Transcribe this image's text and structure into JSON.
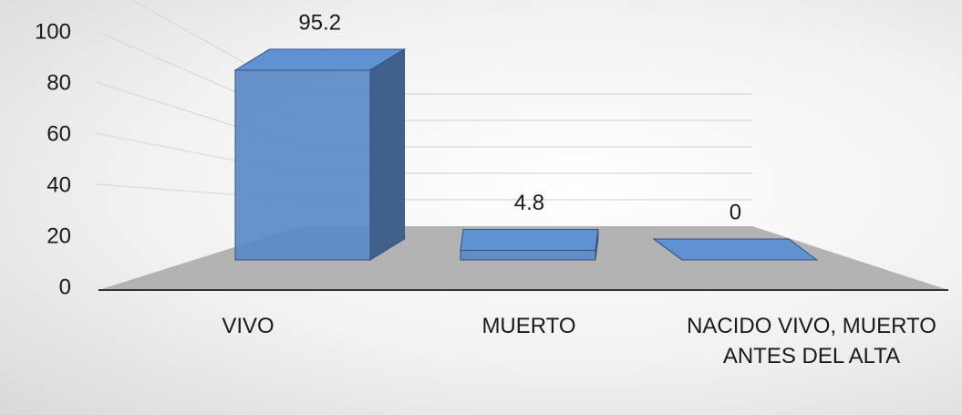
{
  "chart_data": {
    "type": "bar3d",
    "categories": [
      "VIVO",
      "MUERTO",
      "NACIDO VIVO, MUERTO ANTES DEL ALTA"
    ],
    "values": [
      95.2,
      4.8,
      0
    ],
    "color": "#5b8ac6",
    "ylim": [
      0,
      100
    ],
    "yticks": [
      0,
      20,
      40,
      60,
      80,
      100
    ],
    "grid": true
  }
}
